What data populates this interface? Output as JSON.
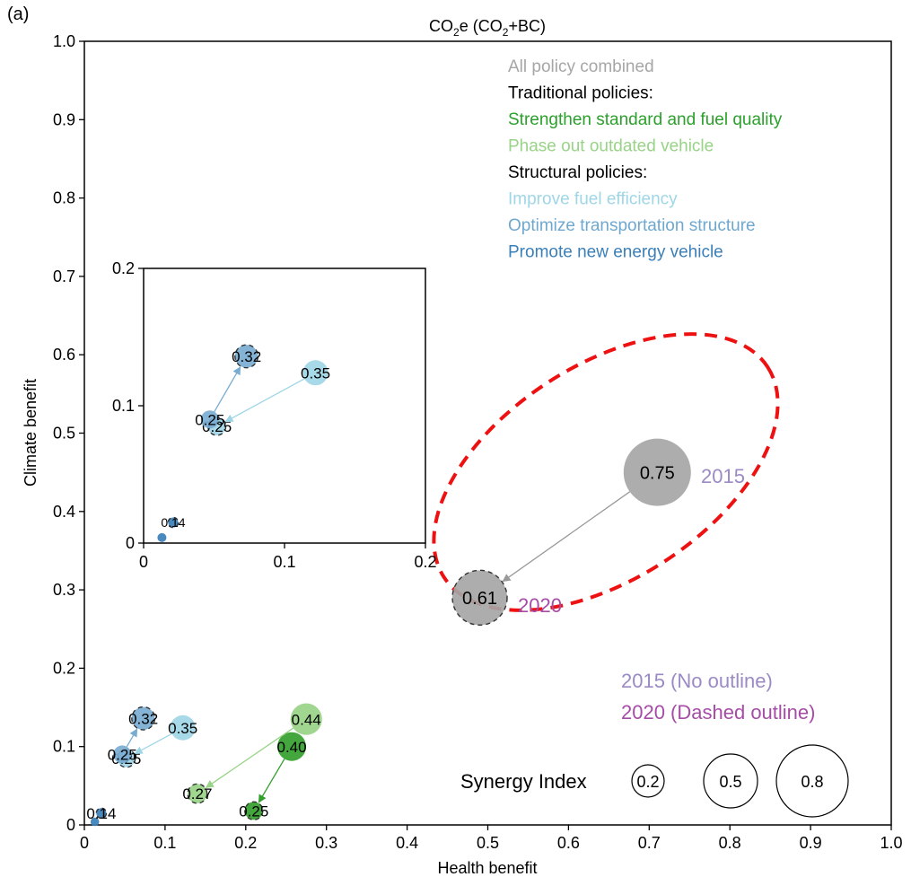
{
  "panel_label": "(a)",
  "chart_data": {
    "type": "scatter",
    "title": "CO₂e (CO₂+BC)",
    "title_parts": {
      "base": "CO",
      "sub": "2",
      "tail": "e (CO",
      "sub2": "2",
      "end": "+BC)"
    },
    "xlabel": "Health benefit",
    "ylabel": "Climate benefit",
    "xlim": [
      0,
      1.0
    ],
    "ylim": [
      0,
      1.0
    ],
    "x_ticks": [
      "0",
      "0.1",
      "0.2",
      "0.3",
      "0.4",
      "0.5",
      "0.6",
      "0.7",
      "0.8",
      "0.9",
      "1.0"
    ],
    "y_ticks": [
      "0",
      "0.1",
      "0.2",
      "0.3",
      "0.4",
      "0.5",
      "0.6",
      "0.7",
      "0.8",
      "0.9",
      "1.0"
    ],
    "grid": false,
    "legend": {
      "placement": "top-right",
      "entries": [
        {
          "text": "All policy combined",
          "color": "#a6a6a6"
        },
        {
          "text": "Traditional policies:",
          "color": "#000000"
        },
        {
          "text": "Strengthen standard and fuel quality",
          "color": "#2ca02c"
        },
        {
          "text": "Phase out outdated vehicle",
          "color": "#98d387"
        },
        {
          "text": "Structural policies:",
          "color": "#000000"
        },
        {
          "text": "Improve fuel efficiency",
          "color": "#9fd6e6"
        },
        {
          "text": "Optimize transportation structure",
          "color": "#6fa8cf"
        },
        {
          "text": "Promote new energy vehicle",
          "color": "#3a7fb8"
        }
      ]
    },
    "year_legend": [
      {
        "text": "2015 (No outline)",
        "color": "#9b8ac4"
      },
      {
        "text": "2020 (Dashed outline)",
        "color": "#a64ca6"
      }
    ],
    "size_legend": {
      "title": "Synergy Index",
      "values": [
        "0.2",
        "0.5",
        "0.8"
      ]
    },
    "series": [
      {
        "name": "All policy combined",
        "color": "#a6a6a6",
        "y2015": {
          "x": 0.71,
          "y": 0.45,
          "label": "0.75"
        },
        "y2020": {
          "x": 0.49,
          "y": 0.29,
          "label": "0.61"
        }
      },
      {
        "name": "Strengthen standard and fuel quality",
        "color": "#33a02c",
        "y2015": {
          "x": 0.257,
          "y": 0.1,
          "label": "0.40"
        },
        "y2020": {
          "x": 0.21,
          "y": 0.018,
          "label": "0.25"
        }
      },
      {
        "name": "Phase out outdated vehicle",
        "color": "#98d387",
        "y2015": {
          "x": 0.275,
          "y": 0.135,
          "label": "0.44"
        },
        "y2020": {
          "x": 0.14,
          "y": 0.04,
          "label": "0.27"
        }
      },
      {
        "name": "Improve fuel efficiency",
        "color": "#9fd6e6",
        "y2015": {
          "x": 0.122,
          "y": 0.124,
          "label": "0.35"
        },
        "y2020": {
          "x": 0.052,
          "y": 0.085,
          "label": "0.25"
        }
      },
      {
        "name": "Optimize transportation structure",
        "color": "#79acd1",
        "y2015": {
          "x": 0.047,
          "y": 0.09,
          "label": "0.25"
        },
        "y2020": {
          "x": 0.073,
          "y": 0.136,
          "label": "0.32"
        }
      },
      {
        "name": "Promote new energy vehicle",
        "color": "#3a7fb8",
        "y2015": {
          "x": 0.013,
          "y": 0.004,
          "label": ""
        },
        "y2020": {
          "x": 0.021,
          "y": 0.015,
          "label": "0.14"
        }
      }
    ],
    "annotations": [
      {
        "text": "2015",
        "color": "#9b8ac4"
      },
      {
        "text": "2020",
        "color": "#a64ca6"
      }
    ],
    "inset": {
      "xlim": [
        0,
        0.2
      ],
      "ylim": [
        0,
        0.2
      ],
      "x_ticks": [
        "0",
        "0.1",
        "0.2"
      ],
      "y_ticks": [
        "0",
        "0.1",
        "0.2"
      ]
    }
  }
}
